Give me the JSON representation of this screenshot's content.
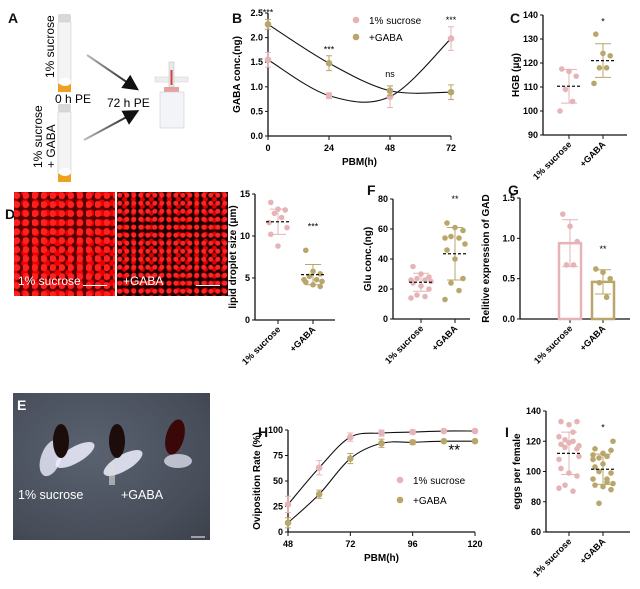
{
  "panels": {
    "A": {
      "label": "A",
      "tube1_label": "1% sucrose",
      "tube2_line1": "1% sucrose",
      "tube2_line2": "+ GABA",
      "time0": "0 h PE",
      "time72": "72 h PE"
    },
    "B": {
      "label": "B"
    },
    "C": {
      "label": "C"
    },
    "D": {
      "label": "D",
      "image_left_label": "1% sucrose",
      "image_right_label": "+GABA"
    },
    "E": {
      "label": "E",
      "left_label": "1% sucrose",
      "right_label": "+GABA"
    },
    "F": {
      "label": "F"
    },
    "G": {
      "label": "G"
    },
    "H": {
      "label": "H"
    },
    "I": {
      "label": "I"
    }
  },
  "colors": {
    "sucrose": "#e6b3b6",
    "gaba": "#b9a66b"
  },
  "chart_data": [
    {
      "id": "B",
      "type": "line",
      "xlabel": "PBM(h)",
      "ylabel": "GABA conc.(ng)",
      "xlim": [
        0,
        72
      ],
      "ylim": [
        0,
        2.5
      ],
      "xtick_labels": [
        "0",
        "24",
        "48",
        "72"
      ],
      "ytick_labels": [
        "0.0",
        "0.5",
        "1.0",
        "1.5",
        "2.0",
        "2.5"
      ],
      "x": [
        0,
        24,
        48,
        72
      ],
      "series": [
        {
          "name": "1% sucrose",
          "color": "#e6b3b6",
          "values": [
            1.55,
            0.82,
            0.8,
            1.98
          ],
          "errors": [
            0.15,
            0.06,
            0.22,
            0.24
          ]
        },
        {
          "name": "+GABA",
          "color": "#b9a66b",
          "values": [
            2.27,
            1.48,
            0.92,
            0.89
          ],
          "errors": [
            0.1,
            0.15,
            0.1,
            0.15
          ]
        }
      ],
      "annotations": [
        {
          "x": 0,
          "y": 2.45,
          "text": "***"
        },
        {
          "x": 24,
          "y": 1.7,
          "text": "***"
        },
        {
          "x": 48,
          "y": 1.2,
          "text": "ns"
        },
        {
          "x": 72,
          "y": 2.3,
          "text": "***"
        }
      ],
      "legend": "top-right"
    },
    {
      "id": "C",
      "type": "scatter",
      "ylabel": "HGB (μg)",
      "ylim": [
        90,
        140
      ],
      "ytick_labels": [
        "90",
        "100",
        "110",
        "120",
        "130",
        "140"
      ],
      "categories": [
        "1% sucrose",
        "+GABA"
      ],
      "groups": [
        {
          "color": "#e6b3b6",
          "values": [
            117.5,
            116.5,
            114.5,
            109,
            104,
            100
          ],
          "mean": 110.3,
          "sd": 7
        },
        {
          "color": "#b9a66b",
          "values": [
            132,
            124,
            123,
            118,
            118,
            111.5
          ],
          "mean": 121,
          "sd": 7
        }
      ],
      "annotations": [
        {
          "category": 1,
          "y": 136,
          "text": "*"
        }
      ]
    },
    {
      "id": "D",
      "type": "scatter",
      "ylabel": "lipid droplet size (μm)",
      "ylim": [
        0,
        15
      ],
      "ytick_labels": [
        "0",
        "5",
        "10",
        "15"
      ],
      "categories": [
        "1% sucrose",
        "+GABA"
      ],
      "groups": [
        {
          "color": "#e6b3b6",
          "values": [
            14,
            13.2,
            13.1,
            12.7,
            12.2,
            11.6,
            11,
            10.2,
            8.8
          ],
          "mean": 11.7,
          "sd": 1.5
        },
        {
          "color": "#b9a66b",
          "values": [
            8.3,
            5.8,
            5.5,
            5.2,
            4.8,
            4.8,
            4.6,
            4.5,
            4.2,
            4.0
          ],
          "mean": 5.4,
          "sd": 1.2
        }
      ],
      "annotations": [
        {
          "category": 1,
          "y": 10.8,
          "text": "***"
        }
      ]
    },
    {
      "id": "F",
      "type": "scatter",
      "ylabel": "Glu conc.(ng)",
      "ylim": [
        0,
        80
      ],
      "ytick_labels": [
        "0",
        "20",
        "40",
        "60",
        "80"
      ],
      "categories": [
        "1% sucrose",
        "+GABA"
      ],
      "groups": [
        {
          "color": "#e6b3b6",
          "values": [
            35,
            30,
            28,
            27,
            26,
            26,
            25,
            24,
            22,
            20,
            16,
            15,
            14
          ],
          "mean": 24.5,
          "sd": 6
        },
        {
          "color": "#b9a66b",
          "values": [
            64,
            61,
            59,
            55,
            54,
            54,
            50,
            46,
            40,
            27,
            24,
            19,
            13
          ],
          "mean": 43.5,
          "sd": 17.5
        }
      ],
      "annotations": [
        {
          "category": 1,
          "y": 78,
          "text": "**"
        }
      ]
    },
    {
      "id": "G",
      "type": "bar",
      "ylabel": "Relitive expression of GAD",
      "ylim": [
        0,
        1.5
      ],
      "ytick_labels": [
        "0.0",
        "0.5",
        "1.0",
        "1.5"
      ],
      "categories": [
        "1% sucrose",
        "+GABA"
      ],
      "groups": [
        {
          "color": "#e6b3b6",
          "values": [
            1.3,
            1.15,
            0.96,
            0.67,
            0.67
          ],
          "mean": 0.94,
          "sd": 0.29
        },
        {
          "color": "#b9a66b",
          "values": [
            0.62,
            0.58,
            0.5,
            0.45,
            0.27
          ],
          "mean": 0.46,
          "sd": 0.15
        }
      ],
      "annotations": [
        {
          "category": 1,
          "y": 0.83,
          "text": "**"
        }
      ]
    },
    {
      "id": "H",
      "type": "line",
      "xlabel": "PBM(h)",
      "ylabel": "Oviposition Rate (%)",
      "xlim": [
        48,
        120
      ],
      "ylim": [
        0,
        100
      ],
      "xtick_labels": [
        "48",
        "72",
        "96",
        "120"
      ],
      "ytick_labels": [
        "0",
        "25",
        "50",
        "75",
        "100"
      ],
      "x": [
        48,
        60,
        72,
        84,
        96,
        108,
        120
      ],
      "series": [
        {
          "name": "1% sucrose",
          "color": "#e6b3b6",
          "values": [
            27,
            63,
            93,
            97,
            98,
            99,
            99
          ],
          "errors": [
            8,
            7,
            4,
            3,
            2,
            1,
            1
          ]
        },
        {
          "name": "+GABA",
          "color": "#b9a66b",
          "values": [
            9,
            37,
            72,
            87,
            88,
            89,
            89
          ],
          "errors": [
            5,
            4,
            5,
            4,
            2,
            1,
            1
          ]
        }
      ],
      "annotations": [
        {
          "x": 112,
          "y": 76,
          "text": "**"
        }
      ],
      "legend": "bottom-right"
    },
    {
      "id": "I",
      "type": "scatter",
      "ylabel": "eggs per female",
      "ylim": [
        60,
        140
      ],
      "ytick_labels": [
        "60",
        "80",
        "100",
        "120",
        "140"
      ],
      "categories": [
        "1% sucrose",
        "+GABA"
      ],
      "groups": [
        {
          "color": "#e6b3b6",
          "values": [
            133,
            131,
            133,
            121,
            126,
            123,
            117,
            118,
            119,
            115,
            116,
            120,
            108,
            110,
            102,
            99,
            97,
            91,
            87,
            89
          ],
          "mean": 112,
          "sd": 14
        },
        {
          "color": "#b9a66b",
          "values": [
            115,
            112,
            114,
            109,
            110,
            111,
            120,
            103,
            105,
            99,
            100,
            93,
            95,
            92,
            91,
            90,
            88,
            79,
            95,
            108
          ],
          "mean": 101.5,
          "sd": 10
        },
        {
          "skip": true
        }
      ],
      "annotations": [
        {
          "category": 1,
          "y": 127,
          "text": "*"
        }
      ]
    }
  ]
}
